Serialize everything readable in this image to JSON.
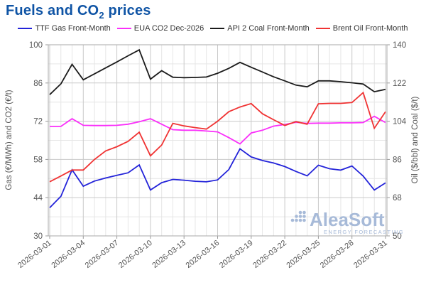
{
  "title": {
    "prefix": "Fuels and CO",
    "sub": "2",
    "suffix": " prices"
  },
  "watermark": {
    "name": "AleaSoft",
    "tagline": "ENERGY FORECASTING",
    "color": "#a7bad8"
  },
  "colors": {
    "title": "#0f54a5",
    "grid_minor": "#e6e6e6",
    "grid_major": "#c9c9c9",
    "plot_border": "#aaaaaa",
    "tick_text": "#555555",
    "axis_title_text": "#555555",
    "legend_text": "#333333"
  },
  "chart_data": {
    "type": "line",
    "x": [
      "2026-03-01",
      "2026-03-02",
      "2026-03-03",
      "2026-03-04",
      "2026-03-05",
      "2026-03-06",
      "2026-03-07",
      "2026-03-08",
      "2026-03-09",
      "2026-03-10",
      "2026-03-11",
      "2026-03-12",
      "2026-03-13",
      "2026-03-14",
      "2026-03-15",
      "2026-03-16",
      "2026-03-17",
      "2026-03-18",
      "2026-03-19",
      "2026-03-20",
      "2026-03-21",
      "2026-03-22",
      "2026-03-23",
      "2026-03-24",
      "2026-03-25",
      "2026-03-26",
      "2026-03-27",
      "2026-03-28",
      "2026-03-29",
      "2026-03-30",
      "2026-03-31"
    ],
    "x_tick_interval": 3,
    "x_tick_labels": [
      "2026-03-01",
      "2026-03-04",
      "2026-03-07",
      "2026-03-10",
      "2026-03-13",
      "2026-03-16",
      "2026-03-19",
      "2026-03-22",
      "2026-03-25",
      "2026-03-28",
      "2026-03-31"
    ],
    "left_axis": {
      "label": "Gas (€/MWh) and CO2 (€/t)",
      "min": 30,
      "max": 100,
      "ticks": [
        30,
        44,
        58,
        72,
        86,
        100
      ],
      "minor_ticks": [
        37,
        51,
        65,
        79,
        93
      ]
    },
    "right_axis": {
      "label": "Oil ($/bbl) and Coal ($/t)",
      "min": 50,
      "max": 140,
      "ticks": [
        50,
        68,
        86,
        104,
        122,
        140
      ],
      "minor_ticks": [
        59,
        77,
        95,
        113,
        131
      ]
    },
    "grid": true,
    "legend_position": "top",
    "series": [
      {
        "name": "TTF Gas Front-Month",
        "axis": "left",
        "color": "#2323d9",
        "values": [
          40.3,
          44.5,
          54.2,
          48.2,
          50.1,
          51.2,
          52.2,
          53.1,
          56.0,
          46.8,
          49.5,
          50.7,
          50.4,
          50.0,
          49.8,
          50.5,
          54.3,
          61.9,
          58.9,
          57.6,
          56.7,
          55.4,
          53.6,
          52.0,
          55.9,
          54.6,
          54.1,
          55.6,
          51.9,
          46.8,
          49.4
        ]
      },
      {
        "name": "EUA CO2 Dec-2026",
        "axis": "left",
        "color": "#fa2ffa",
        "values": [
          70.1,
          70.1,
          72.9,
          70.5,
          70.4,
          70.4,
          70.5,
          70.9,
          71.8,
          72.9,
          70.9,
          68.9,
          68.7,
          68.7,
          68.4,
          68.1,
          66.0,
          63.7,
          67.7,
          68.7,
          70.2,
          70.8,
          71.6,
          71.2,
          71.3,
          71.3,
          71.4,
          71.4,
          71.5,
          73.8,
          71.5
        ]
      },
      {
        "name": "API 2 Coal Front-Month",
        "axis": "right",
        "color": "#1b1b1b",
        "values": [
          116.5,
          121.6,
          130.8,
          123.5,
          126.3,
          129.1,
          131.9,
          134.8,
          137.6,
          123.8,
          127.8,
          124.7,
          124.5,
          124.6,
          124.8,
          126.6,
          128.9,
          131.7,
          129.4,
          127.2,
          124.9,
          123.0,
          121.0,
          120.2,
          123.0,
          123.0,
          122.6,
          122.1,
          121.5,
          117.9,
          119.0
        ]
      },
      {
        "name": "Brent Oil Front-Month",
        "axis": "right",
        "color": "#f03333",
        "values": [
          75.5,
          78.2,
          81.0,
          81.0,
          86.0,
          90.0,
          92.0,
          94.5,
          98.8,
          87.7,
          92.8,
          103.0,
          101.8,
          101.0,
          100.3,
          104.0,
          108.5,
          110.7,
          112.3,
          107.5,
          104.7,
          102.0,
          103.8,
          102.6,
          112.2,
          112.4,
          112.4,
          112.8,
          117.5,
          100.7,
          108.5
        ]
      }
    ]
  }
}
